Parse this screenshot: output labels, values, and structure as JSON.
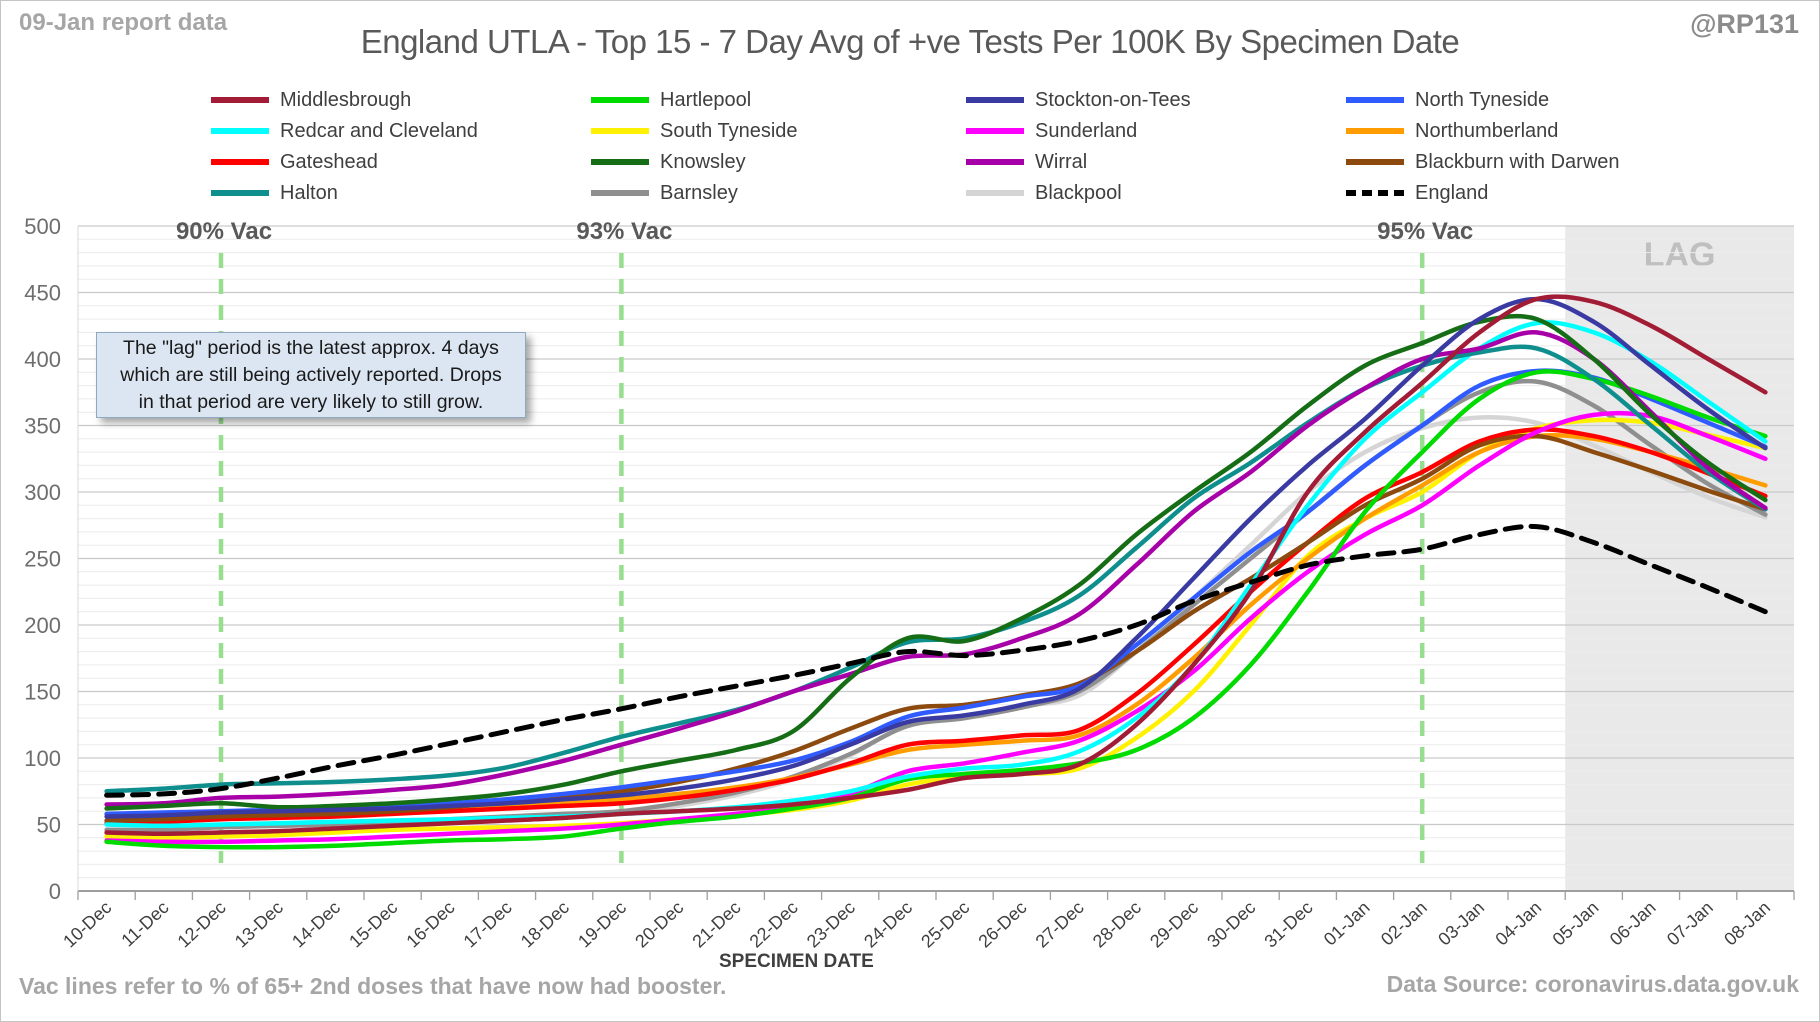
{
  "header": {
    "report_note": "09-Jan report data",
    "title": "England UTLA - Top 15 - 7 Day Avg of +ve Tests Per 100K By Specimen Date",
    "handle": "@RP131"
  },
  "footer": {
    "vac_note": "Vac lines refer to % of 65+ 2nd doses that have now had booster.",
    "xaxis_title": "SPECIMEN DATE",
    "data_source": "Data Source: coronavirus.data.gov.uk"
  },
  "annotation": {
    "line1": "The \"lag\" period is the latest approx. 4 days",
    "line2": "which are still being actively reported. Drops",
    "line3": "in that period are very likely to still grow."
  },
  "colors": {
    "vac_line": "#97de8f",
    "lag_fill": "#e9e9e9",
    "lag_label": "#bfbfbf",
    "grid_major": "#c9c9c9",
    "grid_minor": "#ececec",
    "axis": "#9e9e9e",
    "y_tick_label": "#6e6e6e",
    "x_tick_label": "#3f3f3f",
    "vac_label": "#595959"
  },
  "chart_data": {
    "type": "line",
    "title": "England UTLA - Top 15 - 7 Day Avg of +ve Tests Per 100K By Specimen Date",
    "xlabel": "SPECIMEN DATE",
    "ylabel": "",
    "ylim": [
      0,
      500
    ],
    "y_tick_step": 50,
    "y_minor_step": 10,
    "grid": true,
    "legend_position": "top",
    "x": [
      "10-Dec",
      "11-Dec",
      "12-Dec",
      "13-Dec",
      "14-Dec",
      "15-Dec",
      "16-Dec",
      "17-Dec",
      "18-Dec",
      "19-Dec",
      "20-Dec",
      "21-Dec",
      "22-Dec",
      "23-Dec",
      "24-Dec",
      "25-Dec",
      "26-Dec",
      "27-Dec",
      "28-Dec",
      "29-Dec",
      "30-Dec",
      "31-Dec",
      "01-Jan",
      "02-Jan",
      "03-Jan",
      "04-Jan",
      "05-Jan",
      "06-Jan",
      "07-Jan",
      "08-Jan"
    ],
    "vac_lines": [
      {
        "label": "90% Vac",
        "x": "12-Dec"
      },
      {
        "label": "93% Vac",
        "x": "19-Dec"
      },
      {
        "label": "95% Vac",
        "x": "02-Jan"
      }
    ],
    "lag_region": {
      "label": "LAG",
      "x_start": "05-Jan",
      "covers_last_n_days": 4
    },
    "legend_order_row_major": [
      "Middlesbrough",
      "Hartlepool",
      "Stockton-on-Tees",
      "North Tyneside",
      "Redcar and Cleveland",
      "South Tyneside",
      "Sunderland",
      "Northumberland",
      "Gateshead",
      "Knowsley",
      "Wirral",
      "Blackburn with Darwen",
      "Halton",
      "Barnsley",
      "Blackpool",
      "England"
    ],
    "series": [
      {
        "name": "Blackpool",
        "color": "#d5d5d5",
        "dash": false,
        "values": [
          43,
          43,
          44,
          45,
          47,
          49,
          51,
          53,
          55,
          58,
          64,
          72,
          84,
          102,
          125,
          132,
          139,
          147,
          180,
          220,
          260,
          300,
          330,
          348,
          356,
          352,
          335,
          315,
          296,
          281
        ]
      },
      {
        "name": "Barnsley",
        "color": "#8f8f8f",
        "dash": false,
        "values": [
          46,
          46,
          48,
          49,
          50,
          52,
          54,
          56,
          58,
          60,
          66,
          74,
          86,
          103,
          124,
          130,
          138,
          150,
          180,
          215,
          250,
          285,
          320,
          350,
          375,
          383,
          365,
          335,
          306,
          283
        ]
      },
      {
        "name": "South Tyneside",
        "color": "#fff100",
        "dash": false,
        "values": [
          41,
          40,
          41,
          42,
          44,
          46,
          47,
          48,
          49,
          51,
          54,
          57,
          61,
          68,
          80,
          86,
          88,
          92,
          115,
          150,
          200,
          252,
          280,
          300,
          330,
          348,
          354,
          352,
          343,
          333
        ]
      },
      {
        "name": "Northumberland",
        "color": "#ff9d00",
        "dash": false,
        "values": [
          53,
          54,
          56,
          57,
          58,
          60,
          62,
          64,
          66,
          69,
          73,
          78,
          85,
          95,
          106,
          110,
          113,
          117,
          140,
          175,
          215,
          250,
          280,
          305,
          330,
          342,
          340,
          330,
          318,
          305
        ]
      },
      {
        "name": "Gateshead",
        "color": "#ff0000",
        "dash": false,
        "values": [
          51,
          52,
          54,
          55,
          56,
          58,
          60,
          62,
          64,
          66,
          70,
          76,
          84,
          96,
          110,
          113,
          117,
          121,
          148,
          185,
          225,
          262,
          295,
          315,
          338,
          347,
          342,
          330,
          314,
          297
        ]
      },
      {
        "name": "Blackburn with Darwen",
        "color": "#8c4a0f",
        "dash": false,
        "values": [
          53,
          54,
          56,
          57,
          58,
          60,
          63,
          67,
          71,
          75,
          82,
          92,
          105,
          122,
          137,
          140,
          147,
          156,
          180,
          210,
          235,
          262,
          290,
          310,
          335,
          342,
          330,
          316,
          301,
          287
        ]
      },
      {
        "name": "Sunderland",
        "color": "#ff00ff",
        "dash": false,
        "values": [
          38,
          37,
          37,
          38,
          39,
          41,
          43,
          45,
          47,
          50,
          54,
          58,
          63,
          73,
          90,
          96,
          104,
          113,
          135,
          165,
          205,
          240,
          268,
          290,
          320,
          345,
          358,
          357,
          342,
          325
        ]
      },
      {
        "name": "North Tyneside",
        "color": "#2f5bff",
        "dash": false,
        "values": [
          58,
          59,
          60,
          61,
          62,
          64,
          66,
          69,
          73,
          78,
          84,
          90,
          98,
          112,
          131,
          138,
          146,
          154,
          185,
          220,
          255,
          285,
          320,
          350,
          380,
          391,
          386,
          370,
          352,
          334
        ]
      },
      {
        "name": "Hartlepool",
        "color": "#00db00",
        "dash": false,
        "values": [
          37,
          34,
          33,
          33,
          34,
          36,
          38,
          39,
          41,
          47,
          52,
          56,
          62,
          70,
          84,
          88,
          91,
          96,
          106,
          130,
          170,
          225,
          285,
          330,
          370,
          390,
          385,
          372,
          356,
          342
        ]
      },
      {
        "name": "Redcar and Cleveland",
        "color": "#00ffff",
        "dash": false,
        "values": [
          50,
          49,
          50,
          51,
          52,
          53,
          54,
          55,
          56,
          58,
          60,
          63,
          68,
          75,
          86,
          92,
          95,
          105,
          130,
          170,
          230,
          290,
          340,
          375,
          408,
          427,
          420,
          398,
          368,
          338
        ]
      },
      {
        "name": "Halton",
        "color": "#0f8e8e",
        "dash": false,
        "values": [
          75,
          77,
          80,
          81,
          82,
          84,
          87,
          93,
          104,
          116,
          126,
          136,
          150,
          168,
          187,
          190,
          202,
          222,
          258,
          295,
          322,
          352,
          378,
          395,
          405,
          408,
          385,
          350,
          315,
          287
        ]
      },
      {
        "name": "Wirral",
        "color": "#a800a8",
        "dash": false,
        "values": [
          65,
          66,
          70,
          71,
          73,
          76,
          80,
          88,
          98,
          110,
          122,
          135,
          150,
          163,
          176,
          178,
          190,
          208,
          245,
          285,
          315,
          350,
          378,
          400,
          408,
          420,
          400,
          360,
          318,
          288
        ]
      },
      {
        "name": "Knowsley",
        "color": "#156e15",
        "dash": false,
        "values": [
          62,
          64,
          66,
          63,
          64,
          66,
          69,
          73,
          80,
          90,
          98,
          106,
          120,
          160,
          190,
          188,
          205,
          230,
          268,
          300,
          330,
          365,
          395,
          412,
          428,
          430,
          400,
          358,
          322,
          294
        ]
      },
      {
        "name": "Stockton-on-Tees",
        "color": "#3a3aa3",
        "dash": false,
        "values": [
          56,
          57,
          59,
          60,
          61,
          62,
          64,
          66,
          69,
          72,
          77,
          84,
          94,
          110,
          127,
          132,
          140,
          152,
          190,
          235,
          280,
          320,
          355,
          395,
          430,
          445,
          428,
          395,
          362,
          333
        ]
      },
      {
        "name": "Middlesbrough",
        "color": "#a21c35",
        "dash": false,
        "values": [
          44,
          43,
          44,
          45,
          47,
          49,
          51,
          53,
          55,
          58,
          60,
          62,
          65,
          70,
          76,
          85,
          88,
          95,
          125,
          170,
          225,
          300,
          345,
          382,
          420,
          445,
          443,
          425,
          400,
          375
        ]
      },
      {
        "name": "England",
        "color": "#000000",
        "dash": true,
        "values": [
          72,
          73,
          77,
          85,
          94,
          102,
          111,
          120,
          129,
          137,
          146,
          154,
          162,
          171,
          180,
          177,
          181,
          188,
          200,
          218,
          232,
          245,
          252,
          257,
          268,
          274,
          262,
          245,
          228,
          210
        ]
      }
    ]
  }
}
